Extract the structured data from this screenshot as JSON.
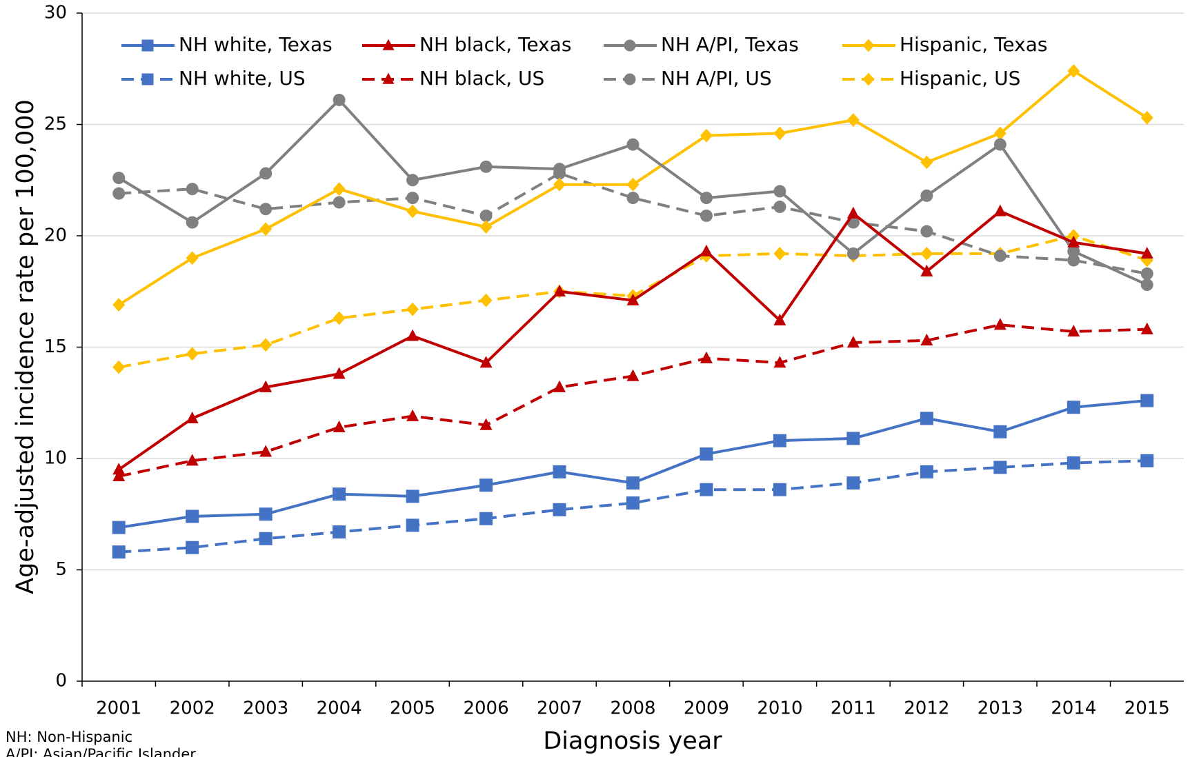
{
  "chart_data": {
    "type": "line",
    "x_label": "Diagnosis year",
    "y_label": "Age-adjusted incidence rate per 100,000",
    "notes": [
      "NH: Non-Hispanic",
      "A/PI: Asian/Pacific Islander"
    ],
    "categories": [
      "2001",
      "2002",
      "2003",
      "2004",
      "2005",
      "2006",
      "2007",
      "2008",
      "2009",
      "2010",
      "2011",
      "2012",
      "2013",
      "2014",
      "2015"
    ],
    "ylim": [
      0,
      30
    ],
    "yticks": [
      0,
      5,
      10,
      15,
      20,
      25,
      30
    ],
    "grid": true,
    "legend": "top",
    "series": [
      {
        "name": "NH white, Texas",
        "color": "#4472c4",
        "marker": "square",
        "style": "solid",
        "values": [
          6.9,
          7.4,
          7.5,
          8.4,
          8.3,
          8.8,
          9.4,
          8.9,
          10.2,
          10.8,
          10.9,
          11.8,
          11.2,
          12.3,
          12.6
        ]
      },
      {
        "name": "NH black, Texas",
        "color": "#c00000",
        "marker": "triangle",
        "style": "solid",
        "values": [
          9.5,
          11.8,
          13.2,
          13.8,
          15.5,
          14.3,
          17.5,
          17.1,
          19.3,
          16.2,
          21.0,
          18.4,
          21.1,
          19.7,
          19.2
        ]
      },
      {
        "name": "NH A/PI, Texas",
        "color": "#808080",
        "marker": "circle",
        "style": "solid",
        "values": [
          22.6,
          20.6,
          22.8,
          26.1,
          22.5,
          23.1,
          23.0,
          24.1,
          21.7,
          22.0,
          19.2,
          21.8,
          24.1,
          19.3,
          17.8
        ]
      },
      {
        "name": "Hispanic, Texas",
        "color": "#ffc000",
        "marker": "diamond",
        "style": "solid",
        "values": [
          16.9,
          19.0,
          20.3,
          22.1,
          21.1,
          20.4,
          22.3,
          22.3,
          24.5,
          24.6,
          25.2,
          23.3,
          24.6,
          27.4,
          25.3
        ]
      },
      {
        "name": "NH white, US",
        "color": "#4472c4",
        "marker": "square",
        "style": "dashed",
        "values": [
          5.8,
          6.0,
          6.4,
          6.7,
          7.0,
          7.3,
          7.7,
          8.0,
          8.6,
          8.6,
          8.9,
          9.4,
          9.6,
          9.8,
          9.9
        ]
      },
      {
        "name": "NH black, US",
        "color": "#c00000",
        "marker": "triangle",
        "style": "dashed",
        "values": [
          9.2,
          9.9,
          10.3,
          11.4,
          11.9,
          11.5,
          13.2,
          13.7,
          14.5,
          14.3,
          15.2,
          15.3,
          16.0,
          15.7,
          15.8
        ]
      },
      {
        "name": "NH A/PI, US",
        "color": "#808080",
        "marker": "circle",
        "style": "dashed",
        "values": [
          21.9,
          22.1,
          21.2,
          21.5,
          21.7,
          20.9,
          22.8,
          21.7,
          20.9,
          21.3,
          20.6,
          20.2,
          19.1,
          18.9,
          18.3
        ]
      },
      {
        "name": "Hispanic, US",
        "color": "#ffc000",
        "marker": "diamond",
        "style": "dashed",
        "values": [
          14.1,
          14.7,
          15.1,
          16.3,
          16.7,
          17.1,
          17.5,
          17.3,
          19.1,
          19.2,
          19.1,
          19.2,
          19.2,
          20.0,
          18.9
        ]
      }
    ]
  }
}
